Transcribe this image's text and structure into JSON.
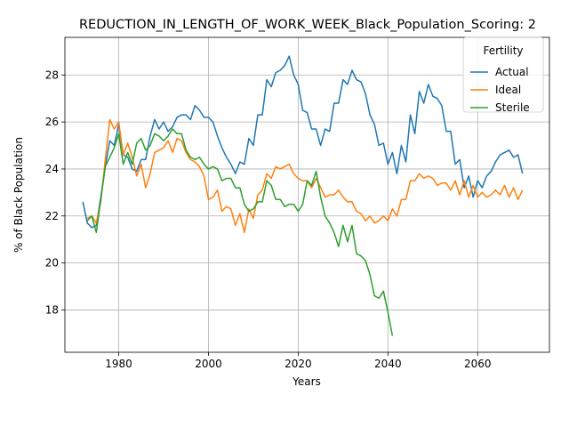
{
  "chart_data": {
    "type": "line",
    "title": "REDUCTION_IN_LENGTH_OF_WORK_WEEK_Black_Population_Scoring: 2",
    "xlabel": "Years",
    "ylabel": "% of Black Population",
    "xlim": [
      1968,
      2076
    ],
    "ylim": [
      16.2,
      29.6
    ],
    "xticks": [
      1980,
      2000,
      2020,
      2040,
      2060
    ],
    "yticks": [
      18,
      20,
      22,
      24,
      26,
      28
    ],
    "grid": true,
    "legend": {
      "title": "Fertility",
      "placement": "top-right"
    },
    "series": [
      {
        "name": "Actual",
        "color": "#1f77b4",
        "x": [
          1972,
          1973,
          1974,
          1975,
          1976,
          1977,
          1978,
          1979,
          1980,
          1981,
          1982,
          1983,
          1984,
          1985,
          1986,
          1987,
          1988,
          1989,
          1990,
          1991,
          1992,
          1993,
          1994,
          1995,
          1996,
          1997,
          1998,
          1999,
          2000,
          2001,
          2002,
          2003,
          2004,
          2005,
          2006,
          2007,
          2008,
          2009,
          2010,
          2011,
          2012,
          2013,
          2014,
          2015,
          2016,
          2017,
          2018,
          2019,
          2020,
          2021,
          2022,
          2023,
          2024,
          2025,
          2026,
          2027,
          2028,
          2029,
          2030,
          2031,
          2032,
          2033,
          2034,
          2035,
          2036,
          2037,
          2038,
          2039,
          2040,
          2041,
          2042,
          2043,
          2044,
          2045,
          2046,
          2047,
          2048,
          2049,
          2050,
          2051,
          2052,
          2053,
          2054,
          2055,
          2056,
          2057,
          2058,
          2059,
          2060,
          2061,
          2062,
          2063,
          2064,
          2065,
          2066,
          2067,
          2068,
          2069,
          2070
        ],
        "values": [
          22.6,
          21.7,
          21.5,
          21.6,
          22.8,
          24.1,
          25.2,
          25.0,
          25.9,
          24.6,
          24.5,
          24.0,
          23.9,
          24.4,
          24.4,
          25.4,
          26.1,
          25.7,
          26.0,
          25.6,
          25.8,
          26.2,
          26.3,
          26.3,
          26.1,
          26.7,
          26.5,
          26.2,
          26.2,
          26.0,
          25.4,
          24.9,
          24.5,
          24.2,
          23.8,
          24.3,
          24.2,
          25.3,
          25.0,
          26.3,
          26.3,
          27.8,
          27.5,
          28.1,
          28.2,
          28.4,
          28.8,
          28.0,
          27.6,
          26.5,
          26.4,
          25.7,
          25.7,
          25.0,
          25.7,
          25.6,
          26.8,
          26.8,
          27.8,
          27.6,
          28.2,
          27.8,
          27.7,
          27.2,
          26.3,
          25.9,
          25.0,
          25.1,
          24.2,
          24.7,
          23.8,
          25.0,
          24.3,
          26.3,
          25.5,
          27.3,
          26.8,
          27.6,
          27.1,
          27.0,
          26.7,
          25.6,
          25.6,
          24.2,
          24.4,
          23.2,
          23.7,
          22.8,
          23.5,
          23.2,
          23.7,
          23.9,
          24.3,
          24.6,
          24.7,
          24.8,
          24.5,
          24.6,
          23.8
        ]
      },
      {
        "name": "Ideal",
        "color": "#ff7f0e",
        "x": [
          1973,
          1974,
          1975,
          1976,
          1977,
          1978,
          1979,
          1980,
          1981,
          1982,
          1983,
          1984,
          1985,
          1986,
          1987,
          1988,
          1989,
          1990,
          1991,
          1992,
          1993,
          1994,
          1995,
          1996,
          1997,
          1998,
          1999,
          2000,
          2001,
          2002,
          2003,
          2004,
          2005,
          2006,
          2007,
          2008,
          2009,
          2010,
          2011,
          2012,
          2013,
          2014,
          2015,
          2016,
          2017,
          2018,
          2019,
          2020,
          2021,
          2022,
          2023,
          2024,
          2025,
          2026,
          2027,
          2028,
          2029,
          2030,
          2031,
          2032,
          2033,
          2034,
          2035,
          2036,
          2037,
          2038,
          2039,
          2040,
          2041,
          2042,
          2043,
          2044,
          2045,
          2046,
          2047,
          2048,
          2049,
          2050,
          2051,
          2052,
          2053,
          2054,
          2055,
          2056,
          2057,
          2058,
          2059,
          2060,
          2061,
          2062,
          2063,
          2064,
          2065,
          2066,
          2067,
          2068,
          2069,
          2070
        ],
        "values": [
          21.9,
          22.0,
          21.7,
          22.6,
          24.4,
          26.1,
          25.7,
          26.0,
          24.6,
          25.1,
          24.5,
          23.7,
          24.2,
          23.2,
          23.8,
          24.7,
          24.8,
          24.9,
          25.2,
          24.7,
          25.3,
          25.2,
          24.7,
          24.4,
          24.3,
          24.1,
          23.7,
          22.7,
          22.8,
          23.1,
          22.2,
          22.4,
          22.3,
          21.6,
          22.1,
          21.3,
          22.3,
          21.9,
          22.9,
          23.1,
          23.8,
          23.6,
          24.1,
          24.0,
          24.1,
          24.2,
          23.8,
          23.6,
          23.5,
          23.5,
          23.2,
          23.6,
          23.2,
          22.8,
          22.9,
          22.9,
          23.1,
          22.8,
          22.6,
          22.6,
          22.2,
          22.1,
          21.8,
          22.0,
          21.7,
          21.8,
          22.0,
          21.8,
          22.3,
          22.0,
          22.7,
          22.7,
          23.5,
          23.5,
          23.8,
          23.6,
          23.7,
          23.6,
          23.3,
          23.4,
          23.4,
          23.1,
          23.5,
          22.9,
          23.5,
          22.8,
          23.3,
          22.8,
          23.0,
          22.8,
          22.9,
          23.1,
          22.9,
          23.3,
          22.8,
          23.2,
          22.7,
          23.1
        ]
      },
      {
        "name": "Sterile",
        "color": "#2ca02c",
        "x": [
          1973,
          1974,
          1975,
          1976,
          1977,
          1978,
          1979,
          1980,
          1981,
          1982,
          1983,
          1984,
          1985,
          1986,
          1987,
          1988,
          1989,
          1990,
          1991,
          1992,
          1993,
          1994,
          1995,
          1996,
          1997,
          1998,
          1999,
          2000,
          2001,
          2002,
          2003,
          2004,
          2005,
          2006,
          2007,
          2008,
          2009,
          2010,
          2011,
          2012,
          2013,
          2014,
          2015,
          2016,
          2017,
          2018,
          2019,
          2020,
          2021,
          2022,
          2023,
          2024,
          2025,
          2026,
          2027,
          2028,
          2029,
          2030,
          2031,
          2032,
          2033,
          2034,
          2035,
          2036,
          2037,
          2038,
          2039,
          2040,
          2041
        ],
        "values": [
          21.8,
          22.0,
          21.3,
          22.7,
          24.1,
          24.5,
          24.9,
          25.5,
          24.2,
          24.7,
          24.2,
          25.1,
          25.3,
          24.8,
          25.0,
          25.5,
          25.4,
          25.2,
          25.4,
          25.7,
          25.5,
          25.5,
          24.8,
          24.5,
          24.4,
          24.5,
          24.2,
          24.0,
          24.1,
          24.0,
          23.5,
          23.6,
          23.6,
          23.2,
          23.2,
          22.5,
          22.2,
          22.3,
          22.6,
          22.6,
          23.5,
          23.3,
          22.7,
          22.7,
          22.4,
          22.5,
          22.5,
          22.2,
          22.5,
          23.5,
          23.3,
          23.9,
          22.8,
          22.0,
          21.7,
          21.3,
          20.7,
          21.6,
          20.9,
          21.6,
          20.4,
          20.3,
          20.1,
          19.5,
          18.6,
          18.5,
          18.8,
          17.9,
          16.9
        ]
      }
    ]
  }
}
